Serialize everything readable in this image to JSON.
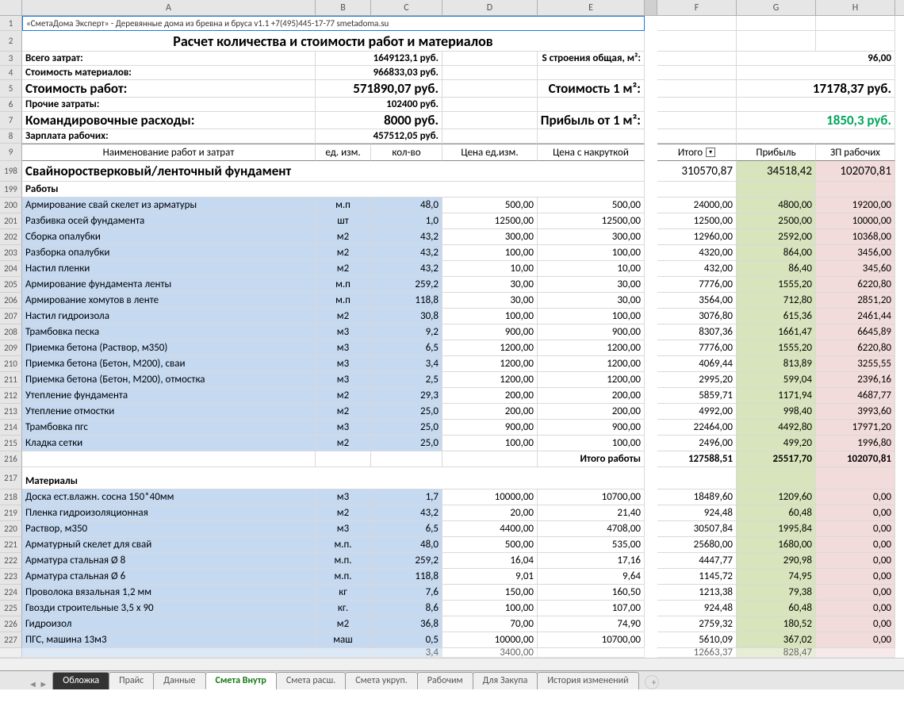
{
  "columns": [
    "A",
    "B",
    "C",
    "D",
    "E",
    "F",
    "G",
    "H"
  ],
  "row1_ref": "«СметаДома Эксперт» - Деревянные дома из бревна и бруса v1.1 +7(495)445-17-77 smetadoma.su",
  "title": "Расчет количества и стоимости работ и материалов",
  "summary": [
    {
      "n": 3,
      "label": "Всего затрат:",
      "val": "1649123,1 руб.",
      "r_label": "S строения общая, м²:",
      "r_val": "96,00"
    },
    {
      "n": 4,
      "label": "Стоимость материалов:",
      "val": "966833,03 руб.",
      "r_label": "",
      "r_val": ""
    },
    {
      "n": 5,
      "label": "Стоимость работ:",
      "val": "571890,07 руб.",
      "r_label": "Стоимость 1 м²:",
      "r_val": "17178,37 руб.",
      "big": true
    },
    {
      "n": 6,
      "label": "Прочие затраты:",
      "val": "102400 руб.",
      "r_label": "",
      "r_val": ""
    },
    {
      "n": 7,
      "label": "Командировочные расходы:",
      "val": "8000 руб.",
      "r_label": "Прибыль от 1 м²:",
      "r_val": "1850,3 руб.",
      "green": true,
      "big": true
    },
    {
      "n": 8,
      "label": "Зарплата рабочих:",
      "val": "457512,05 руб.",
      "r_label": "",
      "r_val": ""
    }
  ],
  "headers": {
    "n": 9,
    "a": "Наименование работ и затрат",
    "b": "ед. изм.",
    "c": "кол-во",
    "d": "Цена ед.изм.",
    "e": "Цена с накруткой",
    "f": "Итого",
    "g": "Прибыль",
    "h": "ЗП рабочих"
  },
  "section": {
    "n": 198,
    "title": "Свайноростверковый/ленточный фундамент",
    "f": "310570,87",
    "g": "34518,42",
    "h": "102070,81"
  },
  "works_label": {
    "n": 199,
    "t": "Работы"
  },
  "works": [
    {
      "n": 200,
      "a": "Армирование свай скелет из арматуры",
      "b": "м.п",
      "c": "48,0",
      "d": "500,00",
      "e": "500,00",
      "f": "24000,00",
      "g": "4800,00",
      "h": "19200,00"
    },
    {
      "n": 201,
      "a": "Разбивка осей фундамента",
      "b": "шт",
      "c": "1,0",
      "d": "12500,00",
      "e": "12500,00",
      "f": "12500,00",
      "g": "2500,00",
      "h": "10000,00"
    },
    {
      "n": 202,
      "a": "Сборка опалубки",
      "b": "м2",
      "c": "43,2",
      "d": "300,00",
      "e": "300,00",
      "f": "12960,00",
      "g": "2592,00",
      "h": "10368,00"
    },
    {
      "n": 203,
      "a": "Разборка опалубки",
      "b": "м2",
      "c": "43,2",
      "d": "100,00",
      "e": "100,00",
      "f": "4320,00",
      "g": "864,00",
      "h": "3456,00"
    },
    {
      "n": 204,
      "a": "Настил пленки",
      "b": "м2",
      "c": "43,2",
      "d": "10,00",
      "e": "10,00",
      "f": "432,00",
      "g": "86,40",
      "h": "345,60"
    },
    {
      "n": 205,
      "a": "Армирование фундамента ленты",
      "b": "м.п",
      "c": "259,2",
      "d": "30,00",
      "e": "30,00",
      "f": "7776,00",
      "g": "1555,20",
      "h": "6220,80"
    },
    {
      "n": 206,
      "a": "Армирование хомутов в ленте",
      "b": "м.п",
      "c": "118,8",
      "d": "30,00",
      "e": "30,00",
      "f": "3564,00",
      "g": "712,80",
      "h": "2851,20"
    },
    {
      "n": 207,
      "a": "Настил гидроизола",
      "b": "м2",
      "c": "30,8",
      "d": "100,00",
      "e": "100,00",
      "f": "3076,80",
      "g": "615,36",
      "h": "2461,44"
    },
    {
      "n": 208,
      "a": "Трамбовка песка",
      "b": "м3",
      "c": "9,2",
      "d": "900,00",
      "e": "900,00",
      "f": "8307,36",
      "g": "1661,47",
      "h": "6645,89"
    },
    {
      "n": 209,
      "a": "Приемка бетона (Раствор, м350)",
      "b": "м3",
      "c": "6,5",
      "d": "1200,00",
      "e": "1200,00",
      "f": "7776,00",
      "g": "1555,20",
      "h": "6220,80"
    },
    {
      "n": 210,
      "a": "Приемка бетона (Бетон, М200), сваи",
      "b": "м3",
      "c": "3,4",
      "d": "1200,00",
      "e": "1200,00",
      "f": "4069,44",
      "g": "813,89",
      "h": "3255,55"
    },
    {
      "n": 211,
      "a": "Приемка бетона (Бетон, М200), отмостка",
      "b": "м3",
      "c": "2,5",
      "d": "1200,00",
      "e": "1200,00",
      "f": "2995,20",
      "g": "599,04",
      "h": "2396,16"
    },
    {
      "n": 212,
      "a": "Утепление фундамента",
      "b": "м2",
      "c": "29,3",
      "d": "200,00",
      "e": "200,00",
      "f": "5859,71",
      "g": "1171,94",
      "h": "4687,77"
    },
    {
      "n": 213,
      "a": "Утепление отмостки",
      "b": "м2",
      "c": "25,0",
      "d": "200,00",
      "e": "200,00",
      "f": "4992,00",
      "g": "998,40",
      "h": "3993,60"
    },
    {
      "n": 214,
      "a": "Трамбовка пгс",
      "b": "м3",
      "c": "25,0",
      "d": "900,00",
      "e": "900,00",
      "f": "22464,00",
      "g": "4492,80",
      "h": "17971,20"
    },
    {
      "n": 215,
      "a": "Кладка сетки",
      "b": "м2",
      "c": "25,0",
      "d": "100,00",
      "e": "100,00",
      "f": "2496,00",
      "g": "499,20",
      "h": "1996,80"
    }
  ],
  "works_total": {
    "n": 216,
    "label": "Итого работы",
    "f": "127588,51",
    "g": "25517,70",
    "h": "102070,81"
  },
  "materials_label": {
    "n": 217,
    "t": "Материалы"
  },
  "materials": [
    {
      "n": 218,
      "a": "Доска ест.влажн. сосна 150*40мм",
      "b": "м3",
      "c": "1,7",
      "d": "10000,00",
      "e": "10700,00",
      "f": "18489,60",
      "g": "1209,60",
      "h": "0,00"
    },
    {
      "n": 219,
      "a": "Пленка гидроизоляционная",
      "b": "м2",
      "c": "43,2",
      "d": "20,00",
      "e": "21,40",
      "f": "924,48",
      "g": "60,48",
      "h": "0,00"
    },
    {
      "n": 220,
      "a": "Раствор, м350",
      "b": "м3",
      "c": "6,5",
      "d": "4400,00",
      "e": "4708,00",
      "f": "30507,84",
      "g": "1995,84",
      "h": "0,00"
    },
    {
      "n": 221,
      "a": "Арматурный скелет для свай",
      "b": "м.п.",
      "c": "48,0",
      "d": "500,00",
      "e": "535,00",
      "f": "25680,00",
      "g": "1680,00",
      "h": "0,00"
    },
    {
      "n": 222,
      "a": "Арматура стальная Ø 8",
      "b": "м.п.",
      "c": "259,2",
      "d": "16,04",
      "e": "17,16",
      "f": "4447,77",
      "g": "290,98",
      "h": "0,00"
    },
    {
      "n": 223,
      "a": "Арматура стальная Ø 6",
      "b": "м.п.",
      "c": "118,8",
      "d": "9,01",
      "e": "9,64",
      "f": "1145,72",
      "g": "74,95",
      "h": "0,00"
    },
    {
      "n": 224,
      "a": "Проволока вязальная 1,2 мм",
      "b": "кг",
      "c": "7,6",
      "d": "150,00",
      "e": "160,50",
      "f": "1213,38",
      "g": "79,38",
      "h": "0,00"
    },
    {
      "n": 225,
      "a": "Гвозди строительные 3,5 х 90",
      "b": "кг.",
      "c": "8,6",
      "d": "100,00",
      "e": "107,00",
      "f": "924,48",
      "g": "60,48",
      "h": "0,00"
    },
    {
      "n": 226,
      "a": "Гидроизол",
      "b": "м2",
      "c": "36,8",
      "d": "70,00",
      "e": "74,90",
      "f": "2759,32",
      "g": "180,52",
      "h": "0,00"
    },
    {
      "n": 227,
      "a": "ПГС, машина 13м3",
      "b": "маш",
      "c": "0,5",
      "d": "10000,00",
      "e": "10700,00",
      "f": "5610,09",
      "g": "367,02",
      "h": "0,00"
    }
  ],
  "partial_row": {
    "n": "",
    "b": "",
    "c": "3,4",
    "d": "3400,00",
    "e": "",
    "f": "12663,37",
    "g": "828,47",
    "h": ""
  },
  "tabs": [
    "Обложка",
    "Прайс",
    "Данные",
    "Смета Внутр",
    "Смета расш.",
    "Смета укруп.",
    "Рабочим",
    "Для Закупа",
    "История изменений"
  ],
  "active_tab": 3,
  "colors": {
    "blue": "#c5d9f1",
    "green": "#d8e4bc",
    "pink": "#f2dcdb",
    "green_text": "#00a65a"
  }
}
